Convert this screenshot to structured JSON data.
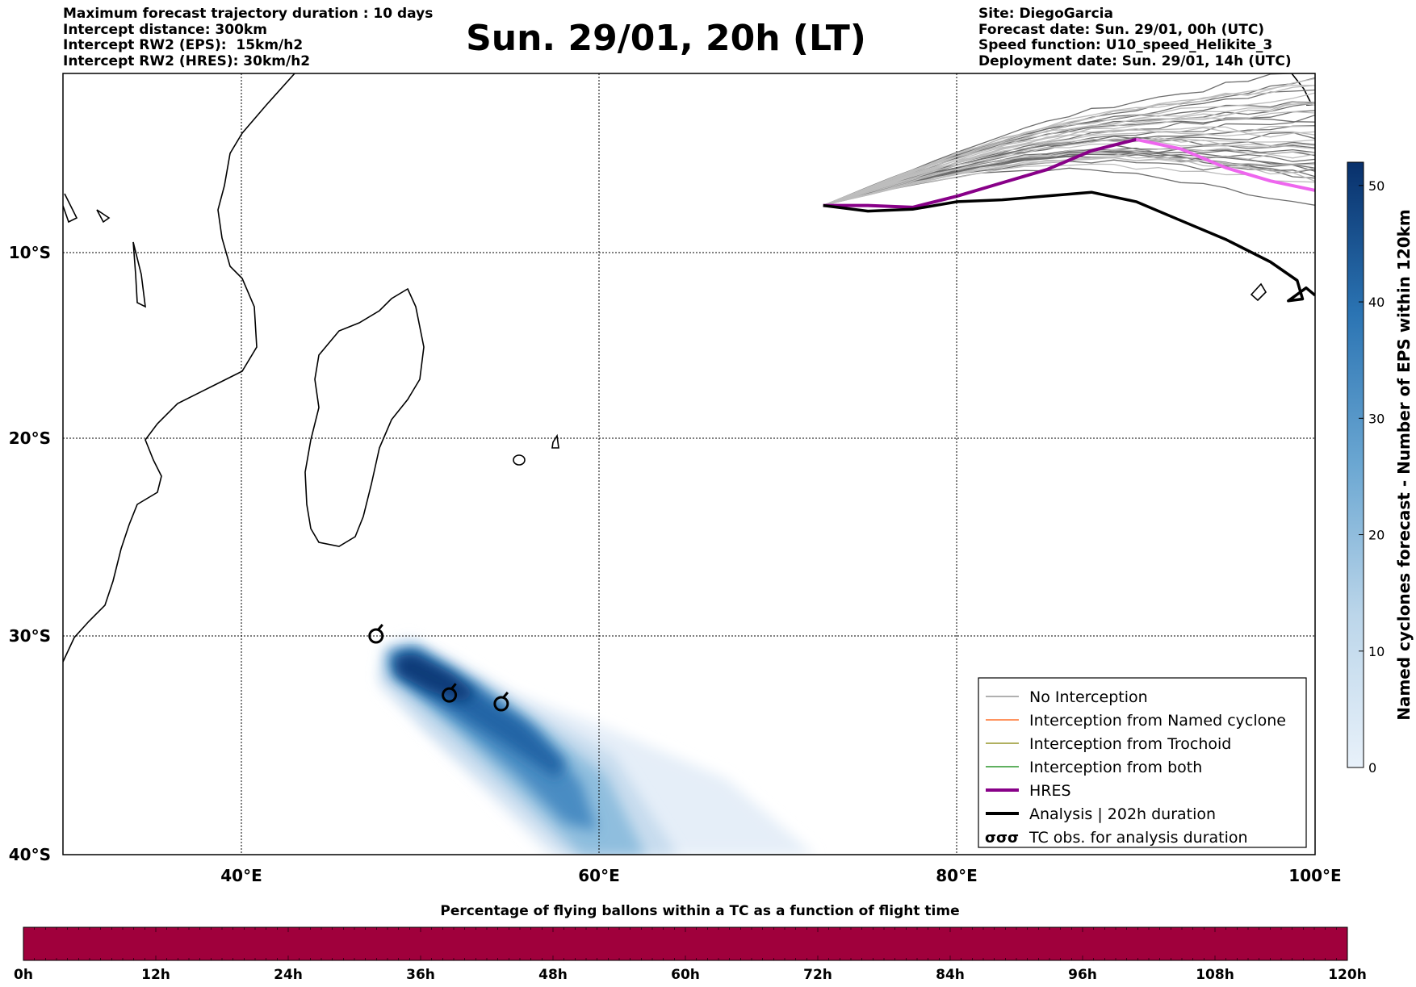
{
  "header_left": [
    "Maximum forecast trajectory duration : 10 days",
    "Intercept distance: 300km",
    "Intercept RW2 (EPS):  15km/h2",
    "Intercept RW2 (HRES): 30km/h2"
  ],
  "header_right": [
    "Site: DiegoGarcia",
    "Forecast date: Sun. 29/01, 00h (UTC)",
    "Speed function: U10_speed_Helikite_3",
    "Deployment date: Sun. 29/01, 14h (UTC)"
  ],
  "title": "Sun. 29/01, 20h (LT)",
  "map": {
    "lon_ticks": [
      "40°E",
      "60°E",
      "80°E",
      "100°E"
    ],
    "lat_ticks": [
      "10°S",
      "20°S",
      "30°S",
      "40°S"
    ],
    "lon_range": [
      30,
      100
    ],
    "lat_range": [
      -40,
      -0.5
    ],
    "grid": "dotted"
  },
  "legend": {
    "position": "lower-right",
    "items": [
      {
        "label": "No Interception",
        "color": "#808080"
      },
      {
        "label": "Interception from Named cyclone",
        "color": "#ff5500"
      },
      {
        "label": "Interception from Trochoid",
        "color": "#808000"
      },
      {
        "label": "Interception from both",
        "color": "#008000"
      },
      {
        "label": "HRES",
        "color": "#880088"
      },
      {
        "label": "Analysis | 202h duration",
        "color": "#000000"
      },
      {
        "label": "TC obs. for analysis duration",
        "color": "#000000",
        "symbol": "σσσ"
      }
    ]
  },
  "colorbar_right": {
    "label": "Named cyclones forecast - Number of EPS within 120km",
    "ticks": [
      "0",
      "10",
      "20",
      "30",
      "40",
      "50"
    ],
    "range": [
      0,
      52
    ],
    "colors": [
      "#e8f1fa",
      "#08306b"
    ]
  },
  "colorbar_bottom": {
    "title": "Percentage of flying ballons within a TC as a function of flight time",
    "ticks": [
      "0h",
      "12h",
      "24h",
      "36h",
      "48h",
      "60h",
      "72h",
      "84h",
      "96h",
      "108h",
      "120h"
    ],
    "fill_color": "#a0003c"
  },
  "chart_data": {
    "type": "map",
    "hres_track": [
      [
        72.5,
        -7.5
      ],
      [
        75,
        -7.5
      ],
      [
        77.5,
        -7.6
      ],
      [
        80,
        -7.0
      ],
      [
        82.5,
        -6.3
      ],
      [
        85,
        -5.6
      ],
      [
        87.5,
        -4.6
      ],
      [
        90,
        -4.0
      ],
      [
        92.5,
        -4.5
      ],
      [
        95,
        -5.5
      ],
      [
        97.5,
        -6.2
      ],
      [
        100,
        -6.7
      ]
    ],
    "analysis_track": [
      [
        72.5,
        -7.5
      ],
      [
        75,
        -7.8
      ],
      [
        77.5,
        -7.7
      ],
      [
        80,
        -7.3
      ],
      [
        82.5,
        -7.2
      ],
      [
        85,
        -7.0
      ],
      [
        87.5,
        -6.8
      ],
      [
        90,
        -7.3
      ],
      [
        92.5,
        -8.3
      ],
      [
        95,
        -9.3
      ],
      [
        97.5,
        -10.5
      ],
      [
        99,
        -11.5
      ],
      [
        99.3,
        -12.5
      ],
      [
        98.5,
        -12.6
      ],
      [
        99.5,
        -11.9
      ],
      [
        100,
        -12.3
      ]
    ],
    "tc_obs": [
      [
        47.5,
        -30.0
      ],
      [
        51.6,
        -32.7
      ],
      [
        54.5,
        -33.1
      ]
    ],
    "cyclone_density_peak": [
      49.5,
      -31.5
    ]
  }
}
